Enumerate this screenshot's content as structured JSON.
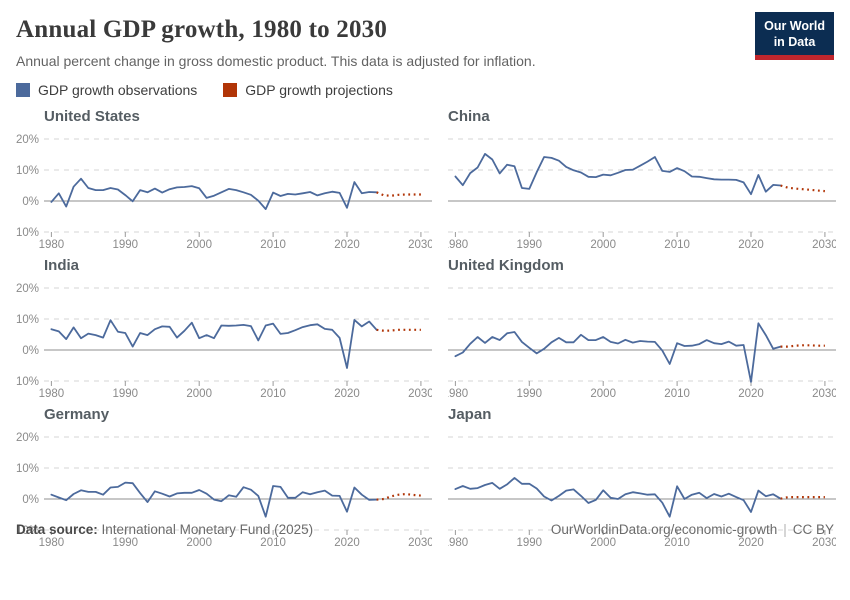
{
  "header": {
    "title": "Annual GDP growth, 1980 to 2030",
    "subtitle": "Annual percent change in gross domestic product. This data is adjusted for inflation.",
    "logo_line1": "Our World",
    "logo_line2": "in Data"
  },
  "legend": {
    "items": [
      {
        "label": "GDP growth observations",
        "color": "#4C6A9C"
      },
      {
        "label": "GDP growth projections",
        "color": "#B13507"
      }
    ]
  },
  "footer": {
    "source_label": "Data source:",
    "source_value": "International Monetary Fund (2025)",
    "link": "OurWorldinData.org/economic-growth",
    "license": "CC BY"
  },
  "colors": {
    "observation_line": "#4C6A9C",
    "projection_line": "#B13507",
    "gridline": "#d6d6d6",
    "zero_line": "#8f8f8f",
    "tick_text": "#8a8a8a",
    "logo_bg": "#0c2d52",
    "logo_bar": "#c0262d"
  },
  "chart_data": {
    "type": "line",
    "title": "Annual GDP growth, 1980 to 2030",
    "x_range": [
      1979,
      2031.5
    ],
    "y_range": [
      -13,
      23
    ],
    "x_ticks": [
      1980,
      1990,
      2000,
      2010,
      2020,
      2030
    ],
    "y_ticks": [
      20,
      10,
      0,
      -10
    ],
    "y_tick_labels": [
      "20%",
      "10%",
      "0%",
      "-10%"
    ],
    "grid": true,
    "legend_position": "top",
    "series_names": [
      "GDP growth observations",
      "GDP growth projections"
    ],
    "panels": [
      {
        "title": "United States",
        "observations": {
          "start_year": 1980,
          "values": [
            -0.3,
            2.5,
            -1.8,
            4.6,
            7.2,
            4.2,
            3.5,
            3.5,
            4.2,
            3.7,
            1.9,
            -0.1,
            3.5,
            2.8,
            4.0,
            2.7,
            3.8,
            4.4,
            4.5,
            4.8,
            4.1,
            1.0,
            1.7,
            2.8,
            3.9,
            3.5,
            2.8,
            2.0,
            0.1,
            -2.6,
            2.7,
            1.6,
            2.3,
            2.1,
            2.5,
            2.9,
            1.8,
            2.5,
            3.0,
            2.6,
            -2.2,
            6.1,
            2.5,
            2.9,
            2.8
          ]
        },
        "projections": {
          "start_year": 2024,
          "values": [
            2.8,
            1.8,
            1.7,
            2.0,
            2.1,
            2.1,
            2.1
          ]
        }
      },
      {
        "title": "China",
        "observations": {
          "start_year": 1980,
          "values": [
            7.9,
            5.1,
            9.0,
            10.8,
            15.2,
            13.4,
            8.9,
            11.7,
            11.2,
            4.2,
            3.9,
            9.3,
            14.2,
            13.9,
            13.0,
            11.0,
            9.9,
            9.2,
            7.8,
            7.7,
            8.5,
            8.3,
            9.1,
            10.0,
            10.1,
            11.4,
            12.7,
            14.2,
            9.7,
            9.4,
            10.6,
            9.6,
            7.9,
            7.8,
            7.4,
            7.0,
            6.9,
            6.9,
            6.8,
            6.0,
            2.2,
            8.4,
            3.0,
            5.2,
            5.0
          ]
        },
        "projections": {
          "start_year": 2024,
          "values": [
            5.0,
            4.3,
            4.0,
            3.8,
            3.6,
            3.4,
            3.2
          ]
        }
      },
      {
        "title": "India",
        "observations": {
          "start_year": 1980,
          "values": [
            6.7,
            6.0,
            3.5,
            7.3,
            3.8,
            5.3,
            4.8,
            4.0,
            9.6,
            5.9,
            5.5,
            1.1,
            5.5,
            4.8,
            6.7,
            7.6,
            7.5,
            4.0,
            6.2,
            8.8,
            3.8,
            4.8,
            3.8,
            7.9,
            7.8,
            7.9,
            8.1,
            7.7,
            3.1,
            7.9,
            8.5,
            5.2,
            5.5,
            6.4,
            7.4,
            8.0,
            8.3,
            6.8,
            6.5,
            3.9,
            -5.8,
            9.7,
            7.6,
            9.2,
            6.5
          ]
        },
        "projections": {
          "start_year": 2024,
          "values": [
            6.5,
            6.2,
            6.3,
            6.5,
            6.5,
            6.5,
            6.5
          ]
        }
      },
      {
        "title": "United Kingdom",
        "observations": {
          "start_year": 1980,
          "values": [
            -2.0,
            -0.8,
            2.0,
            4.2,
            2.3,
            4.2,
            3.2,
            5.4,
            5.8,
            2.6,
            0.7,
            -1.1,
            0.4,
            2.5,
            3.9,
            2.5,
            2.5,
            4.9,
            3.2,
            3.2,
            4.2,
            2.6,
            2.1,
            3.3,
            2.4,
            2.9,
            2.7,
            2.6,
            -0.2,
            -4.5,
            2.2,
            1.3,
            1.4,
            1.9,
            3.2,
            2.2,
            1.9,
            2.7,
            1.4,
            1.6,
            -10.3,
            8.6,
            4.8,
            0.4,
            1.1
          ]
        },
        "projections": {
          "start_year": 2024,
          "values": [
            1.1,
            1.1,
            1.4,
            1.5,
            1.5,
            1.4,
            1.4
          ]
        }
      },
      {
        "title": "Germany",
        "observations": {
          "start_year": 1980,
          "values": [
            1.4,
            0.5,
            -0.4,
            1.6,
            2.8,
            2.3,
            2.3,
            1.4,
            3.7,
            3.9,
            5.3,
            5.1,
            1.9,
            -1.0,
            2.5,
            1.7,
            0.8,
            1.8,
            2.0,
            2.0,
            2.9,
            1.7,
            -0.2,
            -0.7,
            1.2,
            0.7,
            3.8,
            3.0,
            1.0,
            -5.7,
            4.2,
            3.9,
            0.4,
            0.4,
            2.2,
            1.5,
            2.2,
            2.7,
            1.1,
            1.0,
            -4.1,
            3.7,
            1.4,
            -0.3,
            -0.2
          ]
        },
        "projections": {
          "start_year": 2024,
          "values": [
            -0.2,
            0.0,
            0.9,
            1.4,
            1.6,
            1.3,
            1.1
          ]
        }
      },
      {
        "title": "Japan",
        "observations": {
          "start_year": 1980,
          "values": [
            3.2,
            4.2,
            3.3,
            3.5,
            4.5,
            5.2,
            3.3,
            4.7,
            6.8,
            4.9,
            4.9,
            3.4,
            0.8,
            -0.5,
            1.0,
            2.7,
            3.1,
            1.0,
            -1.3,
            -0.3,
            2.8,
            0.4,
            0.0,
            1.5,
            2.2,
            1.8,
            1.4,
            1.5,
            -1.2,
            -5.7,
            4.1,
            0.0,
            1.4,
            2.0,
            0.3,
            1.6,
            0.8,
            1.7,
            0.6,
            -0.4,
            -4.2,
            2.7,
            0.9,
            1.5,
            0.1
          ]
        },
        "projections": {
          "start_year": 2024,
          "values": [
            0.1,
            0.6,
            0.6,
            0.6,
            0.6,
            0.6,
            0.6
          ]
        }
      }
    ]
  }
}
